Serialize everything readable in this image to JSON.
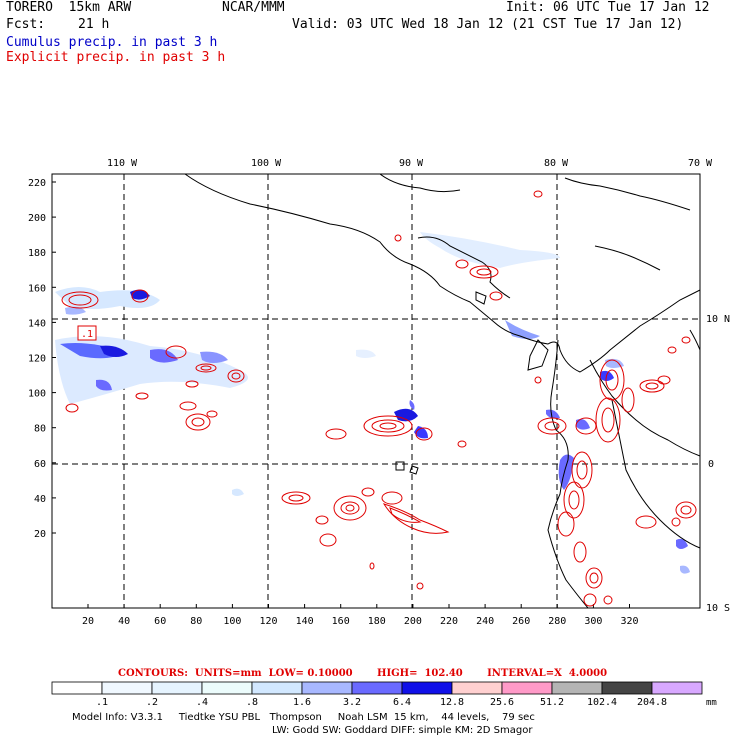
{
  "header": {
    "model": "TORERO  15km ARW",
    "org": "NCAR/MMM",
    "init": "Init: 06 UTC Tue 17 Jan 12",
    "fcst_label": "Fcst:",
    "fcst_value": "21 h",
    "valid": "Valid: 03 UTC Wed 18 Jan 12 (21 CST Tue 17 Jan 12)",
    "cumulus": "Cumulus precip. in past 3 h",
    "explicit": "Explicit precip. in past 3 h"
  },
  "map": {
    "top_lon_labels": [
      "110 W",
      "100 W",
      "90 W",
      "80 W",
      "70 W"
    ],
    "right_lat_labels": [
      "10 N",
      "0",
      "10 S"
    ],
    "left_y_ticks": [
      "220",
      "200",
      "180",
      "160",
      "140",
      "120",
      "100",
      "80",
      "60",
      "40",
      "20"
    ],
    "bottom_x_ticks": [
      "20",
      "40",
      "60",
      "80",
      "100",
      "120",
      "140",
      "160",
      "180",
      "200",
      "220",
      "240",
      "260",
      "280",
      "300",
      "320"
    ],
    "box_label": ".1"
  },
  "contours": {
    "text": "CONTOURS:  UNITS=mm  LOW= 0.10000       HIGH=  102.40       INTERVAL=X  4.0000"
  },
  "colorbar": {
    "labels": [
      ".1",
      ".2",
      ".4",
      ".8",
      "1.6",
      "3.2",
      "6.4",
      "12.8",
      "25.6",
      "51.2",
      "102.4",
      "204.8"
    ],
    "unit": "mm",
    "colors": [
      "#ffffff",
      "#f0f8ff",
      "#e6f4ff",
      "#ecfcfc",
      "#d2e8ff",
      "#a8b8ff",
      "#6a6aff",
      "#1010e8",
      "#ffd0d0",
      "#ff9ac8",
      "#b4b4b4",
      "#444444",
      "#d8a8ff"
    ]
  },
  "footer": {
    "line1": "Model Info: V3.3.1     Tiedtke YSU PBL   Thompson     Noah LSM  15 km,    44 levels,    79 sec",
    "line2": "LW: Godd SW: Goddard DIFF: simple KM: 2D Smagor"
  }
}
